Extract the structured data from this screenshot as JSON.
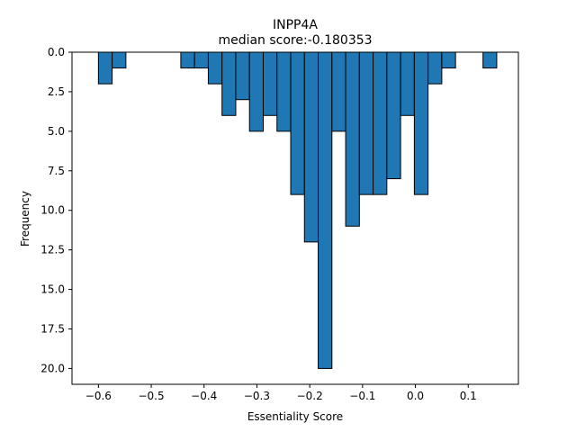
{
  "chart_data": {
    "type": "bar",
    "title": "INPP4A",
    "subtitle": "median score:-0.180353",
    "xlabel": "Essentiality Score",
    "ylabel": "Frequency",
    "xlim": [
      -0.65,
      0.195
    ],
    "ylim": [
      0,
      21
    ],
    "y_inverted": true,
    "x_ticks": [
      -0.6,
      -0.5,
      -0.4,
      -0.3,
      -0.2,
      -0.1,
      0.0,
      0.1
    ],
    "x_tick_labels": [
      "−0.6",
      "−0.5",
      "−0.4",
      "−0.3",
      "−0.2",
      "−0.1",
      "0.0",
      "0.1"
    ],
    "y_ticks": [
      0,
      2.5,
      5,
      7.5,
      10,
      12.5,
      15,
      17.5,
      20
    ],
    "y_tick_labels": [
      "0.0",
      "2.5",
      "5.0",
      "7.5",
      "10.0",
      "12.5",
      "15.0",
      "17.5",
      "20.0"
    ],
    "bin_width": 0.026,
    "bar_color": "#1f77b4",
    "edge_color": "#000000",
    "bins": [
      {
        "x0": -0.6,
        "count": 2
      },
      {
        "x0": -0.574,
        "count": 1
      },
      {
        "x0": -0.444,
        "count": 1
      },
      {
        "x0": -0.418,
        "count": 1
      },
      {
        "x0": -0.392,
        "count": 2
      },
      {
        "x0": -0.366,
        "count": 4
      },
      {
        "x0": -0.34,
        "count": 3
      },
      {
        "x0": -0.314,
        "count": 5
      },
      {
        "x0": -0.288,
        "count": 4
      },
      {
        "x0": -0.262,
        "count": 5
      },
      {
        "x0": -0.236,
        "count": 9
      },
      {
        "x0": -0.21,
        "count": 12
      },
      {
        "x0": -0.184,
        "count": 20
      },
      {
        "x0": -0.158,
        "count": 5
      },
      {
        "x0": -0.132,
        "count": 11
      },
      {
        "x0": -0.106,
        "count": 9
      },
      {
        "x0": -0.08,
        "count": 9
      },
      {
        "x0": -0.054,
        "count": 8
      },
      {
        "x0": -0.028,
        "count": 4
      },
      {
        "x0": -0.002,
        "count": 9
      },
      {
        "x0": 0.024,
        "count": 2
      },
      {
        "x0": 0.05,
        "count": 1
      },
      {
        "x0": 0.128,
        "count": 1
      }
    ]
  }
}
